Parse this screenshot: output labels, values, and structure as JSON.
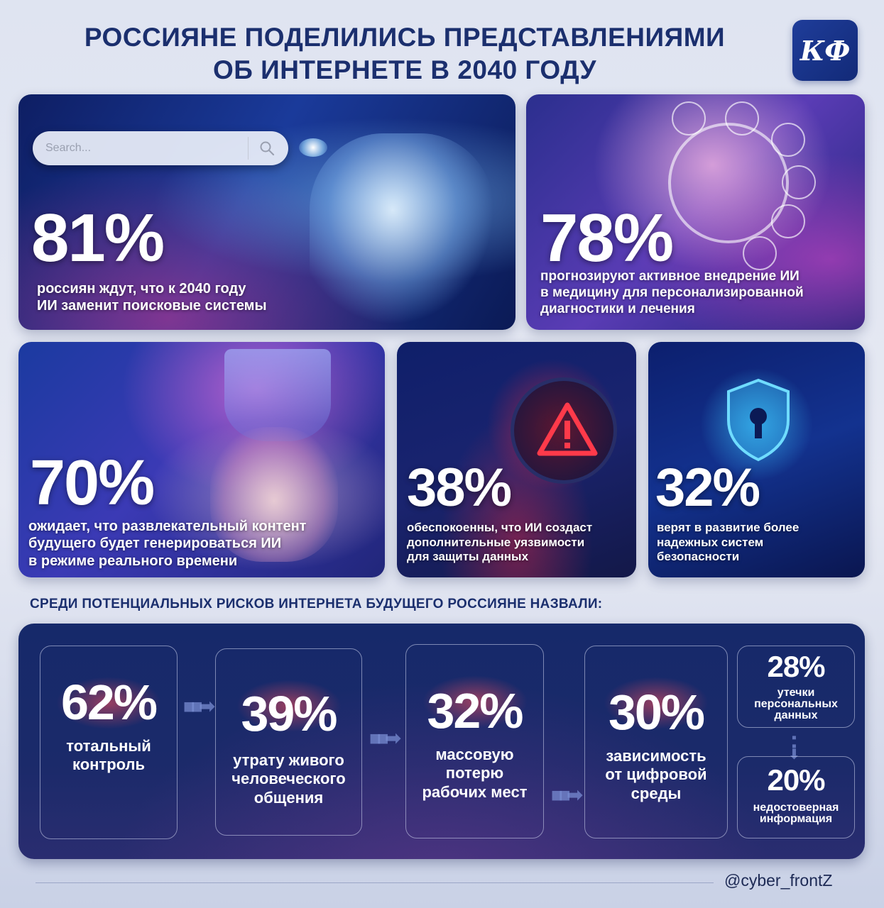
{
  "header": {
    "title_line1": "РОССИЯНЕ ПОДЕЛИЛИСЬ ПРЕДСТАВЛЕНИЯМИ",
    "title_line2": "ОБ ИНТЕРНЕТЕ В 2040 ГОДУ",
    "logo_text": "КФ"
  },
  "cards": [
    {
      "pct": "81%",
      "desc_line1": "россиян ждут, что к 2040 году",
      "desc_line2": "ИИ заменит поисковые системы",
      "search_placeholder": "Search..."
    },
    {
      "pct": "78%",
      "desc_line1": "прогнозируют активное внедрение ИИ",
      "desc_line2": "в медицину для персонализированной",
      "desc_line3": "диагностики и лечения"
    },
    {
      "pct": "70%",
      "desc_line1": "ожидает, что развлекательный контент",
      "desc_line2": "будущего будет генерироваться ИИ",
      "desc_line3": "в режиме реального времени"
    },
    {
      "pct": "38%",
      "desc_line1": "обеспокоенны, что ИИ создаст",
      "desc_line2": "дополнительные уязвимости",
      "desc_line3": "для защиты данных"
    },
    {
      "pct": "32%",
      "desc_line1": "верят в развитие более",
      "desc_line2": "надежных систем",
      "desc_line3": "безопасности"
    }
  ],
  "risks": {
    "title": "СРЕДИ ПОТЕНЦИАЛЬНЫХ РИСКОВ ИНТЕРНЕТА БУДУЩЕГО РОССИЯНЕ НАЗВАЛИ:",
    "items": [
      {
        "pct": "62%",
        "label_line1": "тотальный",
        "label_line2": "контроль",
        "label_line3": ""
      },
      {
        "pct": "39%",
        "label_line1": "утрату живого",
        "label_line2": "человеческого",
        "label_line3": "общения"
      },
      {
        "pct": "32%",
        "label_line1": "массовую",
        "label_line2": "потерю",
        "label_line3": "рабочих мест"
      },
      {
        "pct": "30%",
        "label_line1": "зависимость",
        "label_line2": "от цифровой",
        "label_line3": "среды"
      },
      {
        "pct": "28%",
        "label_line1": "утечки",
        "label_line2": "персональных",
        "label_line3": "данных"
      },
      {
        "pct": "20%",
        "label_line1": "недостоверная",
        "label_line2": "информация",
        "label_line3": ""
      }
    ]
  },
  "footer": {
    "handle": "@cyber_frontZ"
  },
  "colors": {
    "title": "#1b2f6e",
    "panel": "#16296a",
    "accent_red": "#ff4a55",
    "accent_cyan": "#3cc8ff"
  }
}
